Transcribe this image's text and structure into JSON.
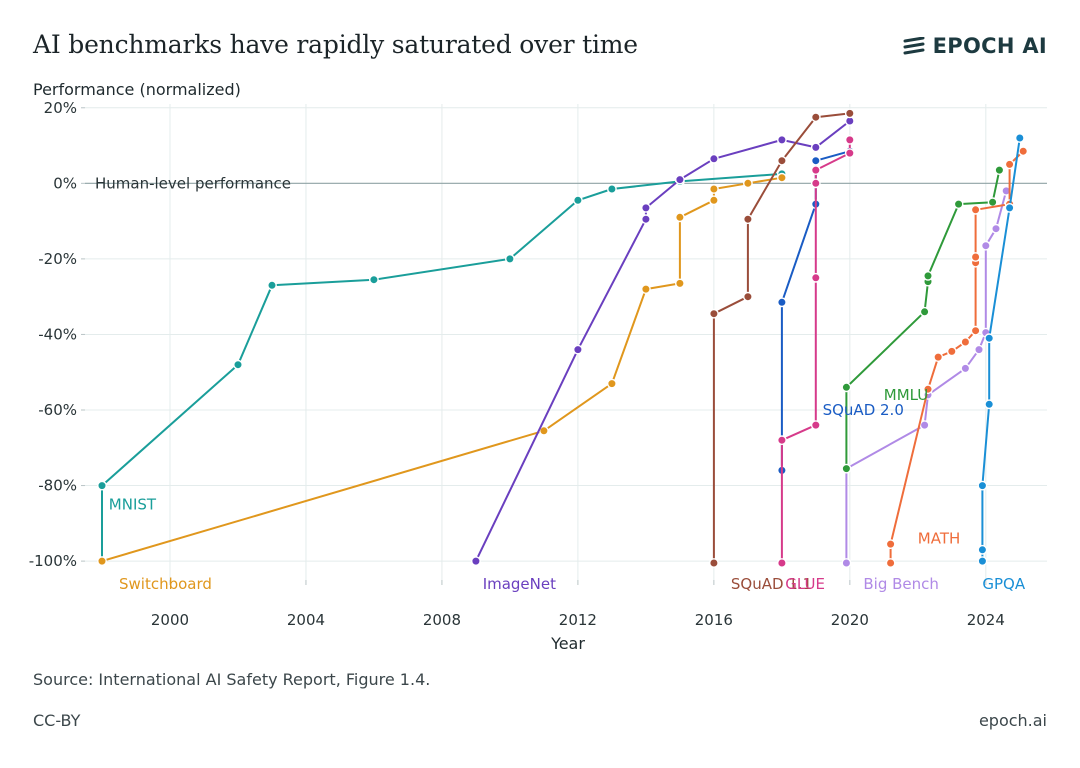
{
  "title": "AI benchmarks have rapidly saturated over time",
  "brand": {
    "name": "EPOCH AI",
    "icon": "epoch-logo-icon"
  },
  "footer": {
    "source": "Source: International AI Safety Report, Figure 1.4.",
    "license": "CC-BY",
    "url": "epoch.ai"
  },
  "chart_data": {
    "type": "line",
    "ylabel": "Performance (normalized)",
    "xlabel": "Year",
    "xlim": [
      1997.5,
      2025.8
    ],
    "ylim": [
      -105,
      21
    ],
    "x_ticks": [
      2000,
      2004,
      2008,
      2012,
      2016,
      2020,
      2024
    ],
    "y_ticks": [
      {
        "value": 20,
        "label": "20%"
      },
      {
        "value": 0,
        "label": "0%"
      },
      {
        "value": -20,
        "label": "-20%"
      },
      {
        "value": -40,
        "label": "-40%"
      },
      {
        "value": -60,
        "label": "-60%"
      },
      {
        "value": -80,
        "label": "-80%"
      },
      {
        "value": -100,
        "label": "-100%"
      }
    ],
    "grid": true,
    "reference_line": {
      "y": 0,
      "label": "Human-level performance"
    },
    "series": [
      {
        "name": "MNIST",
        "color": "#1a9e9a",
        "points": [
          [
            1998,
            -100
          ],
          [
            1998,
            -80
          ],
          [
            2002,
            -48
          ],
          [
            2003,
            -27
          ],
          [
            2006,
            -25.5
          ],
          [
            2010,
            -20
          ],
          [
            2012,
            -4.5
          ],
          [
            2013,
            -1.5
          ],
          [
            2015,
            0.5
          ],
          [
            2018,
            2.5
          ]
        ]
      },
      {
        "name": "Switchboard",
        "color": "#e0971d",
        "points": [
          [
            1998,
            -100
          ],
          [
            2011,
            -65.5
          ],
          [
            2013,
            -53
          ],
          [
            2014,
            -28
          ],
          [
            2015,
            -26.5
          ],
          [
            2015,
            -9
          ],
          [
            2016,
            -4.5
          ],
          [
            2016,
            -1.5
          ],
          [
            2017,
            0
          ],
          [
            2018,
            1.5
          ]
        ]
      },
      {
        "name": "ImageNet",
        "color": "#6a3fbf",
        "points": [
          [
            2009,
            -100
          ],
          [
            2012,
            -44
          ],
          [
            2014,
            -9.5
          ],
          [
            2014,
            -6.5
          ],
          [
            2015,
            1
          ],
          [
            2016,
            6.5
          ],
          [
            2018,
            11.5
          ],
          [
            2019,
            9.5
          ],
          [
            2020,
            16.5
          ]
        ]
      },
      {
        "name": "SQuAD 1.1",
        "color": "#9a4d3a",
        "points": [
          [
            2016,
            -100.5
          ],
          [
            2016,
            -34.5
          ],
          [
            2017,
            -30
          ],
          [
            2017,
            -9.5
          ],
          [
            2018,
            6
          ],
          [
            2019,
            17.5
          ],
          [
            2020,
            18.5
          ]
        ]
      },
      {
        "name": "SQuAD 2.0",
        "color": "#1a5cc4",
        "points": [
          [
            2018,
            -76
          ],
          [
            2018,
            -31.5
          ],
          [
            2019,
            -5.5
          ],
          [
            2019,
            6
          ],
          [
            2020,
            8.5
          ]
        ]
      },
      {
        "name": "GLUE",
        "color": "#d63a8a",
        "points": [
          [
            2018,
            -100.5
          ],
          [
            2018,
            -68
          ],
          [
            2019,
            -64
          ],
          [
            2019,
            -25
          ],
          [
            2019,
            0
          ],
          [
            2019,
            3.5
          ],
          [
            2020,
            8
          ],
          [
            2020,
            11.5
          ]
        ]
      },
      {
        "name": "Big Bench",
        "color": "#b08ae6",
        "points": [
          [
            2019.9,
            -100.5
          ],
          [
            2019.9,
            -75.5
          ],
          [
            2022.2,
            -64
          ],
          [
            2022.3,
            -56
          ],
          [
            2023.4,
            -49
          ],
          [
            2023.8,
            -44
          ],
          [
            2024,
            -39.5
          ],
          [
            2024,
            -16.5
          ],
          [
            2024.3,
            -12
          ],
          [
            2024.6,
            -2
          ]
        ]
      },
      {
        "name": "MMLU",
        "color": "#2f9a3a",
        "points": [
          [
            2019.9,
            -75.5
          ],
          [
            2019.9,
            -54
          ],
          [
            2022.2,
            -34
          ],
          [
            2022.3,
            -26
          ],
          [
            2022.3,
            -24.5
          ],
          [
            2023.2,
            -5.5
          ],
          [
            2024.2,
            -5
          ],
          [
            2024.4,
            3.5
          ]
        ]
      },
      {
        "name": "MATH",
        "color": "#ef6d3b",
        "points": [
          [
            2021.2,
            -100.5
          ],
          [
            2021.2,
            -95.5
          ],
          [
            2022.3,
            -54.5
          ],
          [
            2022.6,
            -46
          ],
          [
            2023.0,
            -44.5
          ],
          [
            2023.4,
            -42
          ],
          [
            2023.7,
            -39
          ],
          [
            2023.7,
            -21
          ],
          [
            2023.7,
            -19.5
          ],
          [
            2023.7,
            -7
          ],
          [
            2024.7,
            -5.5
          ],
          [
            2024.7,
            5
          ],
          [
            2025.1,
            8.5
          ]
        ]
      },
      {
        "name": "GPQA",
        "color": "#1a8fd6",
        "points": [
          [
            2023.9,
            -100
          ],
          [
            2023.9,
            -97
          ],
          [
            2023.9,
            -80
          ],
          [
            2024.1,
            -58.5
          ],
          [
            2024.1,
            -41
          ],
          [
            2024.7,
            -6.5
          ],
          [
            2025,
            12
          ]
        ]
      }
    ],
    "series_labels": [
      {
        "name": "MNIST",
        "x": 1998.2,
        "y": -85
      },
      {
        "name": "Switchboard",
        "x": 1998.5,
        "y": -106
      },
      {
        "name": "ImageNet",
        "x": 2009.2,
        "y": -106
      },
      {
        "name": "SQuAD 1.1",
        "x": 2016.5,
        "y": -106
      },
      {
        "name": "GLUE",
        "x": 2018.1,
        "y": -106
      },
      {
        "name": "Big Bench",
        "x": 2020.4,
        "y": -106
      },
      {
        "name": "GPQA",
        "x": 2023.9,
        "y": -106
      },
      {
        "name": "MATH",
        "x": 2022.0,
        "y": -94
      },
      {
        "name": "MMLU",
        "x": 2021.0,
        "y": -56
      },
      {
        "name": "SQuAD 2.0",
        "x": 2019.2,
        "y": -60
      }
    ]
  }
}
